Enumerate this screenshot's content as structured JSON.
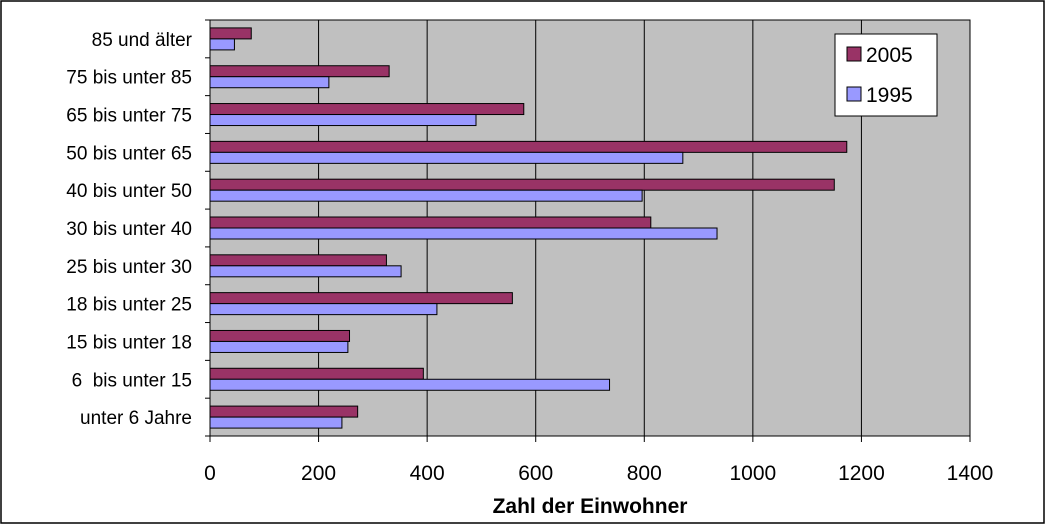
{
  "chart_data": {
    "type": "bar",
    "orientation": "horizontal",
    "categories": [
      "unter 6 Jahre",
      "6  bis unter 15",
      "15 bis unter 18",
      "18 bis unter 25",
      "25 bis unter 30",
      "30 bis unter 40",
      "40 bis unter 50",
      "50 bis unter 65",
      "65 bis unter 75",
      "75 bis unter 85",
      "85 und älter"
    ],
    "series": [
      {
        "name": "2005",
        "color": "#993366",
        "values": [
          272,
          393,
          257,
          557,
          325,
          812,
          1150,
          1173,
          578,
          330,
          76
        ]
      },
      {
        "name": "1995",
        "color": "#9999ff",
        "values": [
          243,
          736,
          254,
          418,
          352,
          934,
          796,
          871,
          490,
          219,
          45
        ]
      }
    ],
    "xlabel": "Zahl der Einwohner",
    "xlim": [
      0,
      1400
    ],
    "xticks": [
      "0",
      "200",
      "400",
      "600",
      "800",
      "1000",
      "1200",
      "1400"
    ],
    "grid": true,
    "plot_background": "#c0c0c0",
    "legend_position": "top-right"
  }
}
